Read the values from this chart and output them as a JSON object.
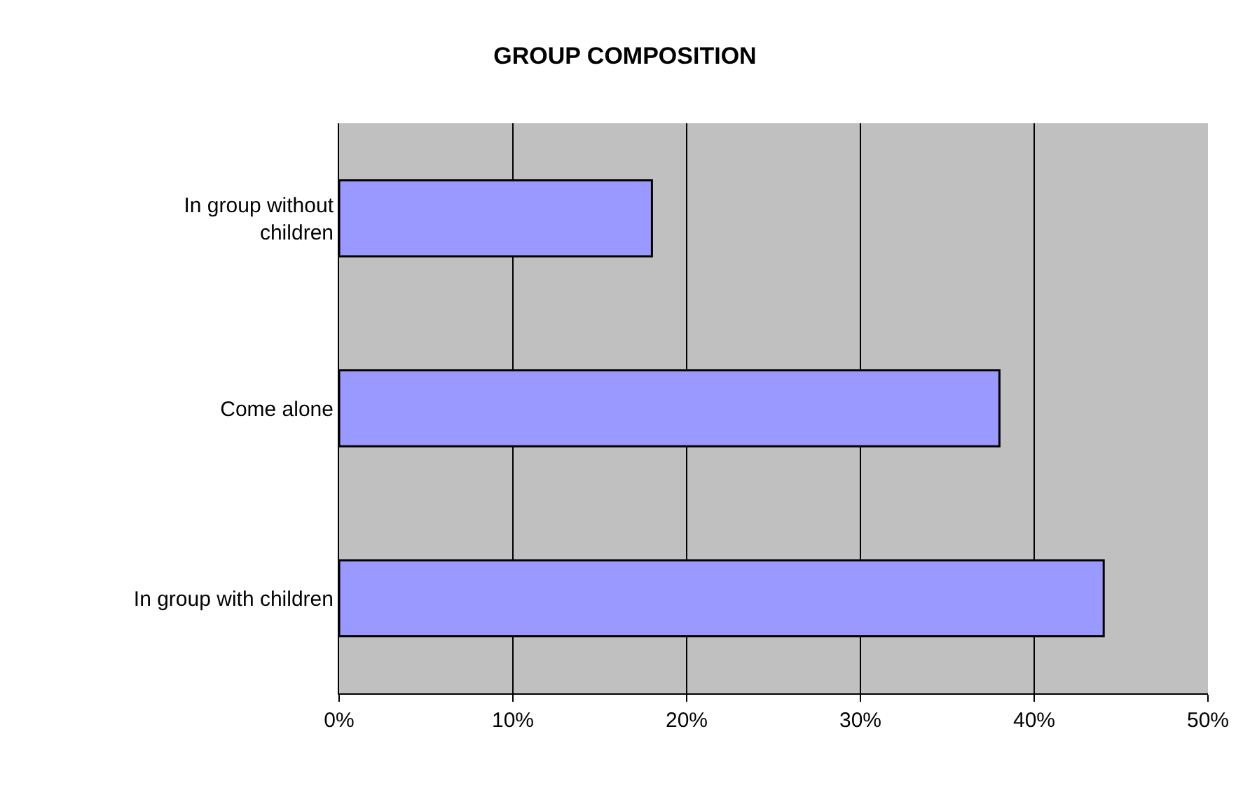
{
  "chart_data": {
    "type": "bar",
    "orientation": "horizontal",
    "title": "GROUP COMPOSITION",
    "categories": [
      "In group without children",
      "Come alone",
      "In group with children"
    ],
    "values": [
      18,
      38,
      44
    ],
    "color": "#9999ff",
    "xlim": [
      0,
      50
    ],
    "xticks": [
      {
        "value": 0,
        "label": "0%"
      },
      {
        "value": 10,
        "label": "10%"
      },
      {
        "value": 20,
        "label": "20%"
      },
      {
        "value": 30,
        "label": "30%"
      },
      {
        "value": 40,
        "label": "40%"
      },
      {
        "value": 50,
        "label": "50%"
      }
    ],
    "grid": "x"
  }
}
